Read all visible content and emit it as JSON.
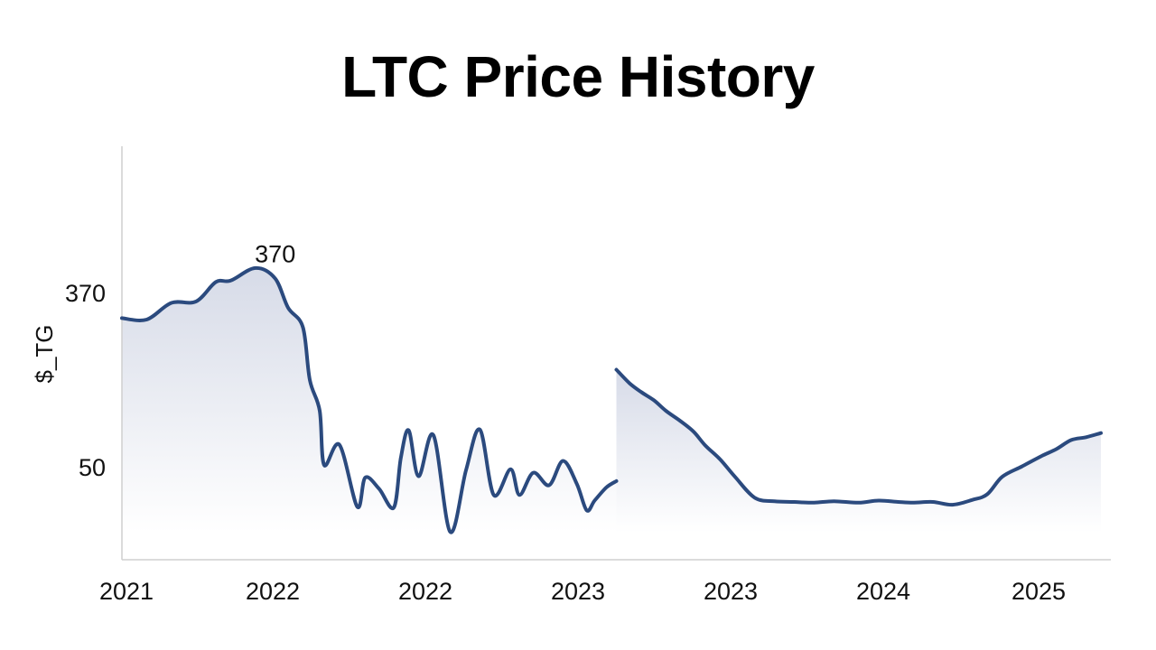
{
  "chart_data": {
    "type": "line",
    "title": "LTC Price History",
    "ylabel": "$_TG",
    "xlabel": "",
    "grid": false,
    "legend": "none",
    "line_color": "#2b4a7e",
    "fill_color": "#c9cfe0",
    "x_ticks": [
      "2021",
      "2022",
      "2022",
      "2023",
      "2023",
      "2024",
      "2025"
    ],
    "y_ticks": [
      "370",
      "50"
    ],
    "annotations": [
      {
        "text": "370",
        "x": 0.155,
        "y": 370
      }
    ],
    "ylim": [
      -34,
      560
    ],
    "series": [
      {
        "x": [
          0,
          0.025,
          0.05,
          0.075,
          0.095,
          0.11,
          0.135,
          0.155,
          0.168,
          0.183,
          0.19,
          0.2,
          0.2045,
          0.22,
          0.238,
          0.246,
          0.26,
          0.275,
          0.282,
          0.29,
          0.3,
          0.315,
          0.332,
          0.348,
          0.362,
          0.376,
          0.393,
          0.402,
          0.416,
          0.432,
          0.446,
          0.46,
          0.47,
          0.478,
          0.49,
          0.5
        ],
        "y": [
          313,
          311,
          335,
          337,
          365,
          367,
          385,
          370,
          328,
          300,
          224,
          180,
          102,
          131,
          42,
          84,
          68,
          41,
          112,
          152,
          86,
          145,
          6,
          95,
          153,
          59,
          96,
          59,
          91,
          73,
          108,
          75,
          37,
          51,
          70,
          79
        ]
      },
      {
        "x": [
          0.5,
          0.513,
          0.525,
          0.538,
          0.55,
          0.565,
          0.578,
          0.59,
          0.605,
          0.62,
          0.64,
          0.66,
          0.68,
          0.7,
          0.72,
          0.745,
          0.765,
          0.785,
          0.8,
          0.82,
          0.84,
          0.86,
          0.875,
          0.89,
          0.91,
          0.93,
          0.945,
          0.96,
          0.975,
          0.99
        ],
        "y": [
          239,
          220,
          207,
          195,
          180,
          165,
          150,
          130,
          110,
          85,
          55,
          50,
          49,
          48,
          50,
          48,
          51,
          49,
          48,
          49,
          45,
          52,
          60,
          85,
          100,
          115,
          125,
          138,
          142,
          148
        ]
      }
    ]
  }
}
